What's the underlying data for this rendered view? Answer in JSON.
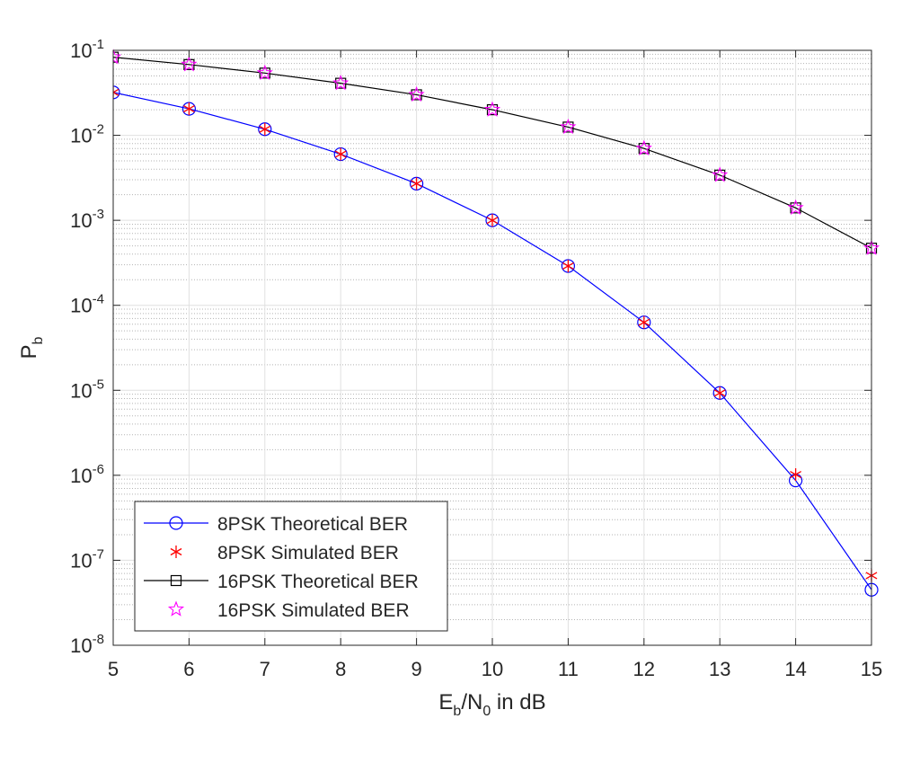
{
  "chart_data": {
    "type": "line",
    "title": "",
    "xlabel": {
      "main": "E",
      "sub1": "b",
      "mid": "/N",
      "sub2": "0",
      "tail": " in dB"
    },
    "ylabel": {
      "main": "P",
      "sub": "b"
    },
    "xlim": [
      5,
      15
    ],
    "ylim": [
      1e-08,
      0.1
    ],
    "yscale": "log",
    "grid": true,
    "minor_grid": true,
    "x_ticks": [
      5,
      6,
      7,
      8,
      9,
      10,
      11,
      12,
      13,
      14,
      15
    ],
    "x_tick_labels": [
      "5",
      "6",
      "7",
      "8",
      "9",
      "10",
      "11",
      "12",
      "13",
      "14",
      "15"
    ],
    "y_ticks": [
      {
        "value": 0.1,
        "base": "10",
        "exp": "-1"
      },
      {
        "value": 0.01,
        "base": "10",
        "exp": "-2"
      },
      {
        "value": 0.001,
        "base": "10",
        "exp": "-3"
      },
      {
        "value": 0.0001,
        "base": "10",
        "exp": "-4"
      },
      {
        "value": 1e-05,
        "base": "10",
        "exp": "-5"
      },
      {
        "value": 1e-06,
        "base": "10",
        "exp": "-6"
      },
      {
        "value": 1e-07,
        "base": "10",
        "exp": "-7"
      },
      {
        "value": 1e-08,
        "base": "10",
        "exp": "-8"
      }
    ],
    "legend_position": "bottom-left",
    "series": [
      {
        "name": "8PSK Theoretical BER",
        "color": "#0000ff",
        "line": true,
        "marker": "circle",
        "x": [
          5,
          6,
          7,
          8,
          9,
          10,
          11,
          12,
          13,
          14,
          15
        ],
        "values": [
          0.032,
          0.0205,
          0.0118,
          0.006,
          0.0027,
          0.001,
          0.00029,
          6.3e-05,
          9.3e-06,
          8.7e-07,
          4.5e-08
        ]
      },
      {
        "name": "8PSK Simulated BER",
        "color": "#ff0000",
        "line": false,
        "marker": "asterisk",
        "x": [
          5,
          6,
          7,
          8,
          9,
          10,
          11,
          12,
          13,
          14,
          15
        ],
        "values": [
          0.032,
          0.0205,
          0.0118,
          0.006,
          0.0027,
          0.001,
          0.00029,
          6.3e-05,
          9.3e-06,
          1.02e-06,
          6.6e-08
        ]
      },
      {
        "name": "16PSK Theoretical BER",
        "color": "#000000",
        "line": true,
        "marker": "square",
        "x": [
          5,
          6,
          7,
          8,
          9,
          10,
          11,
          12,
          13,
          14,
          15
        ],
        "values": [
          0.083,
          0.068,
          0.054,
          0.041,
          0.03,
          0.02,
          0.0125,
          0.007,
          0.0034,
          0.0014,
          0.00047
        ]
      },
      {
        "name": "16PSK Simulated BER",
        "color": "#ff00ff",
        "line": false,
        "marker": "star",
        "x": [
          5,
          6,
          7,
          8,
          9,
          10,
          11,
          12,
          13,
          14,
          15
        ],
        "values": [
          0.083,
          0.068,
          0.054,
          0.041,
          0.03,
          0.02,
          0.0125,
          0.007,
          0.0034,
          0.0014,
          0.00047
        ]
      }
    ]
  }
}
